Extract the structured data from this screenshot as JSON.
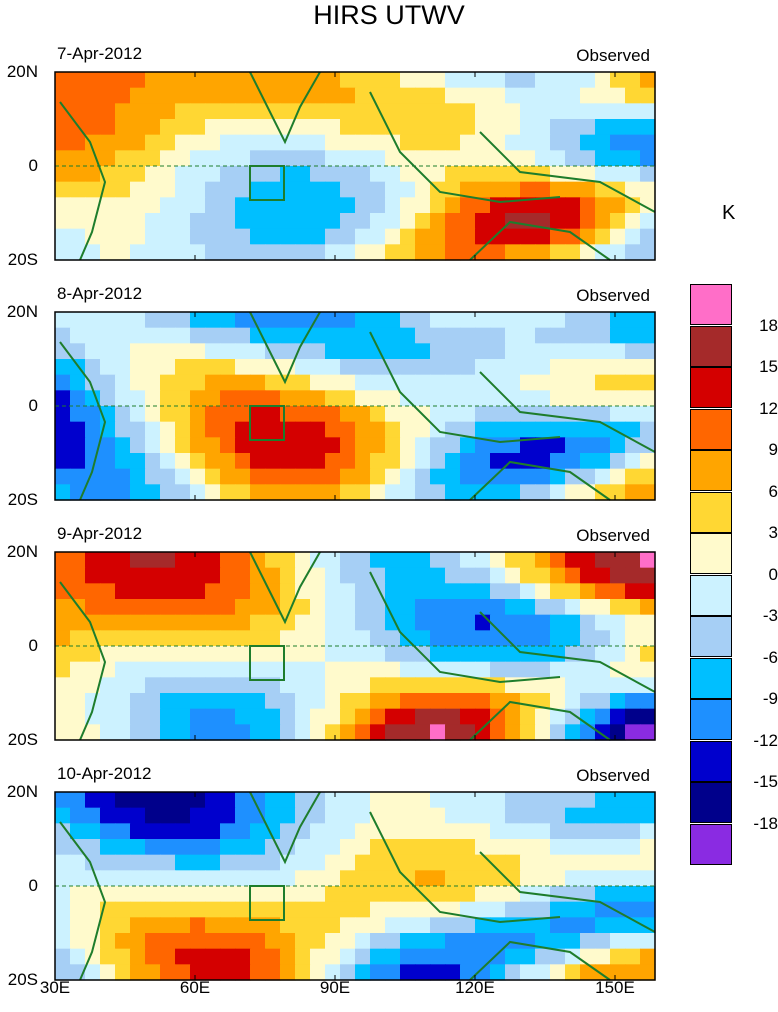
{
  "title": "HIRS UTWV",
  "chart_data": {
    "type": "heatmap",
    "variable": "HIRS UTWV",
    "units": "K",
    "colorbar": {
      "levels": [
        "18",
        "15",
        "12",
        "9",
        "6",
        "3",
        "0",
        "-3",
        "-6",
        "-9",
        "-12",
        "-15",
        "-18"
      ],
      "colors": [
        "#ff6ec8",
        "#a52a2a",
        "#d40000",
        "#ff6600",
        "#ffa500",
        "#ffd733",
        "#fffacc",
        "#ccf2ff",
        "#a6cff5",
        "#00bfff",
        "#1e90ff",
        "#0000cd",
        "#00008b",
        "#8a2be2"
      ]
    },
    "x_ticks": [
      "30E",
      "60E",
      "90E",
      "120E",
      "150E"
    ],
    "y_ticks": [
      "20N",
      "0",
      "20S"
    ],
    "x_range_deg": [
      30,
      160
    ],
    "y_range_deg": [
      -20,
      20
    ],
    "panels": [
      {
        "date": "7-Apr-2012",
        "label": "Observed"
      },
      {
        "date": "8-Apr-2012",
        "label": "Observed"
      },
      {
        "date": "9-Apr-2012",
        "label": "Observed"
      },
      {
        "date": "10-Apr-2012",
        "label": "Observed"
      }
    ]
  }
}
